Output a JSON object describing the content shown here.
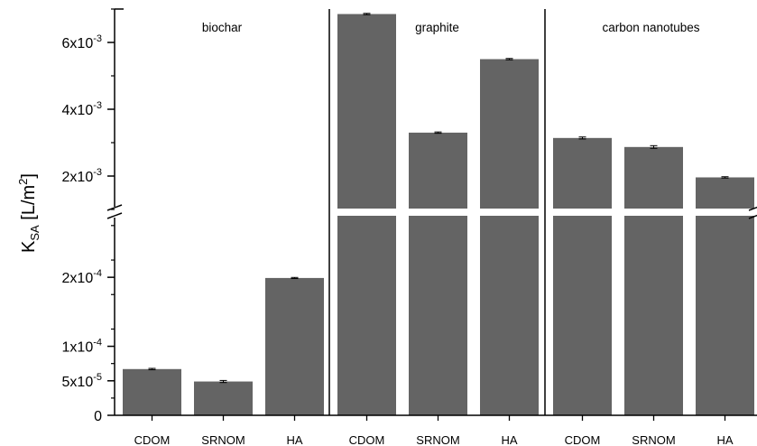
{
  "chart_data": {
    "type": "bar",
    "ylabel": "K_SA [L/m²]",
    "ylabel_parts": {
      "main": "K",
      "sub": "SA",
      "unit_open": " [L/m",
      "unit_sup": "2",
      "unit_close": "]"
    },
    "y_scale": "broken",
    "lower_ylim": [
      0,
      0.00028
    ],
    "upper_ylim": [
      0.001,
      0.007
    ],
    "lower_ticks": [
      {
        "value": 0,
        "mant": "0",
        "exp": ""
      },
      {
        "value": 5e-05,
        "mant": "5x10",
        "exp": "-5"
      },
      {
        "value": 0.0001,
        "mant": "1x10",
        "exp": "-4"
      },
      {
        "value": 0.0002,
        "mant": "2x10",
        "exp": "-4"
      }
    ],
    "upper_ticks": [
      {
        "value": 0.002,
        "mant": "2x10",
        "exp": "-3"
      },
      {
        "value": 0.004,
        "mant": "4x10",
        "exp": "-3"
      },
      {
        "value": 0.006,
        "mant": "6x10",
        "exp": "-3"
      }
    ],
    "grid": false,
    "bar_color": "#646464",
    "panels": [
      {
        "label": "biochar",
        "categories": [
          "CDOM",
          "SRNOM",
          "HA"
        ],
        "values": [
          6.7e-05,
          4.9e-05,
          0.000199
        ],
        "errors": [
          1e-06,
          1.5e-06,
          8e-07
        ]
      },
      {
        "label": "graphite",
        "categories": [
          "CDOM",
          "SRNOM",
          "HA"
        ],
        "values": [
          0.00685,
          0.0033,
          0.0055
        ],
        "errors": [
          2e-05,
          2e-05,
          2e-05
        ]
      },
      {
        "label": "carbon nanotubes",
        "categories": [
          "CDOM",
          "SRNOM",
          "HA"
        ],
        "values": [
          0.00314,
          0.00287,
          0.00196
        ],
        "errors": [
          3e-05,
          4e-05,
          2e-05
        ]
      }
    ]
  }
}
